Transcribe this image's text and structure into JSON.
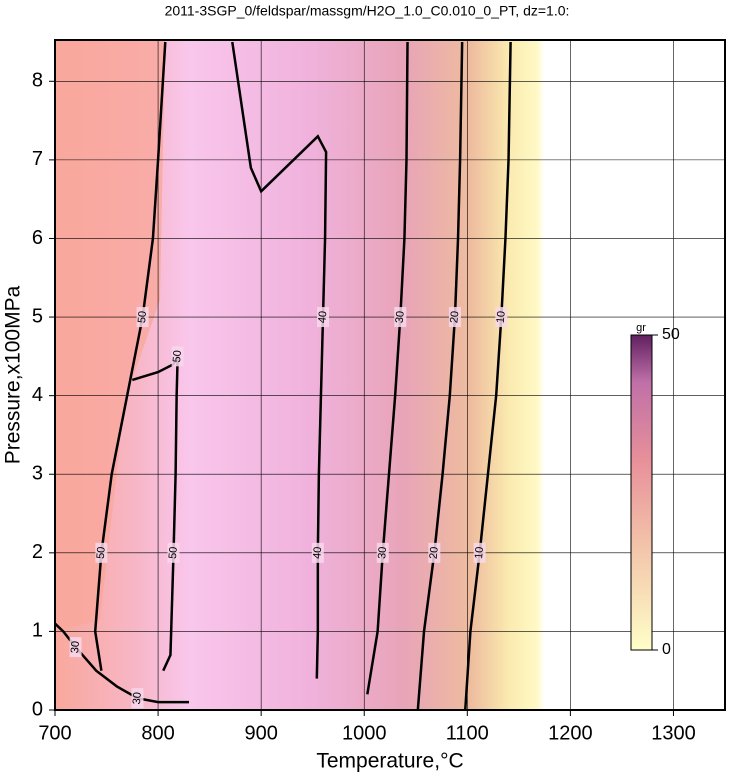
{
  "chart_data": {
    "type": "contour",
    "title": "2011-3SGP_0/feldspar/massgm/H2O_1.0_C0.010_0_PT, dz=1.0:",
    "x_label": "Temperature,°C",
    "y_label": "Pressure,x100MPa",
    "xlim": [
      700,
      1350
    ],
    "xticks": [
      700,
      800,
      900,
      1000,
      1100,
      1200,
      1300
    ],
    "ylim": [
      0,
      8.5
    ],
    "yticks": [
      0,
      1,
      2,
      3,
      4,
      5,
      6,
      7,
      8
    ],
    "grid": true,
    "contours": [
      {
        "level": 10,
        "x": [
          1098,
          1103,
          1112,
          1120,
          1128,
          1133,
          1137,
          1140,
          1142
        ],
        "y": [
          0,
          1,
          2,
          3,
          4,
          5,
          6,
          7,
          8.5
        ]
      },
      {
        "level": 20,
        "x": [
          1052,
          1058,
          1068,
          1076,
          1083,
          1088,
          1091,
          1093,
          1095
        ],
        "y": [
          0,
          1,
          2,
          3,
          4,
          5,
          6,
          7,
          8.5
        ]
      },
      {
        "level": 30,
        "x": [
          1003,
          1013,
          1018,
          1024,
          1030,
          1035,
          1039,
          1041,
          1042
        ],
        "y": [
          0.2,
          1,
          2,
          3,
          4,
          5,
          6,
          7,
          8.5
        ]
      },
      {
        "level": 40,
        "x": [
          954,
          955,
          955,
          956,
          958,
          960,
          962,
          963,
          955,
          900,
          890,
          872
        ],
        "y": [
          0.4,
          1,
          2,
          3,
          4,
          5,
          6,
          7.1,
          7.3,
          6.6,
          6.9,
          8.5
        ]
      },
      {
        "level": 50,
        "x": [
          805,
          812,
          815,
          817,
          818,
          819,
          815,
          800,
          775
        ],
        "y": [
          0.5,
          0.7,
          2,
          3,
          4,
          4.5,
          4.4,
          4.3,
          4.2
        ]
      },
      {
        "level": 50,
        "x": [
          745,
          739,
          745,
          755,
          770,
          785,
          795,
          800,
          807
        ],
        "y": [
          0.5,
          1,
          2,
          3,
          4,
          5,
          6,
          7,
          8.5
        ]
      },
      {
        "level": 30,
        "x": [
          700,
          708,
          720,
          740,
          760,
          780,
          800,
          830
        ],
        "y": [
          1.1,
          1,
          0.8,
          0.5,
          0.3,
          0.15,
          0.1,
          0.1
        ]
      }
    ],
    "colorbar": {
      "label": "gr",
      "lim": [
        0,
        50
      ],
      "ticks": [
        0,
        50
      ]
    }
  }
}
